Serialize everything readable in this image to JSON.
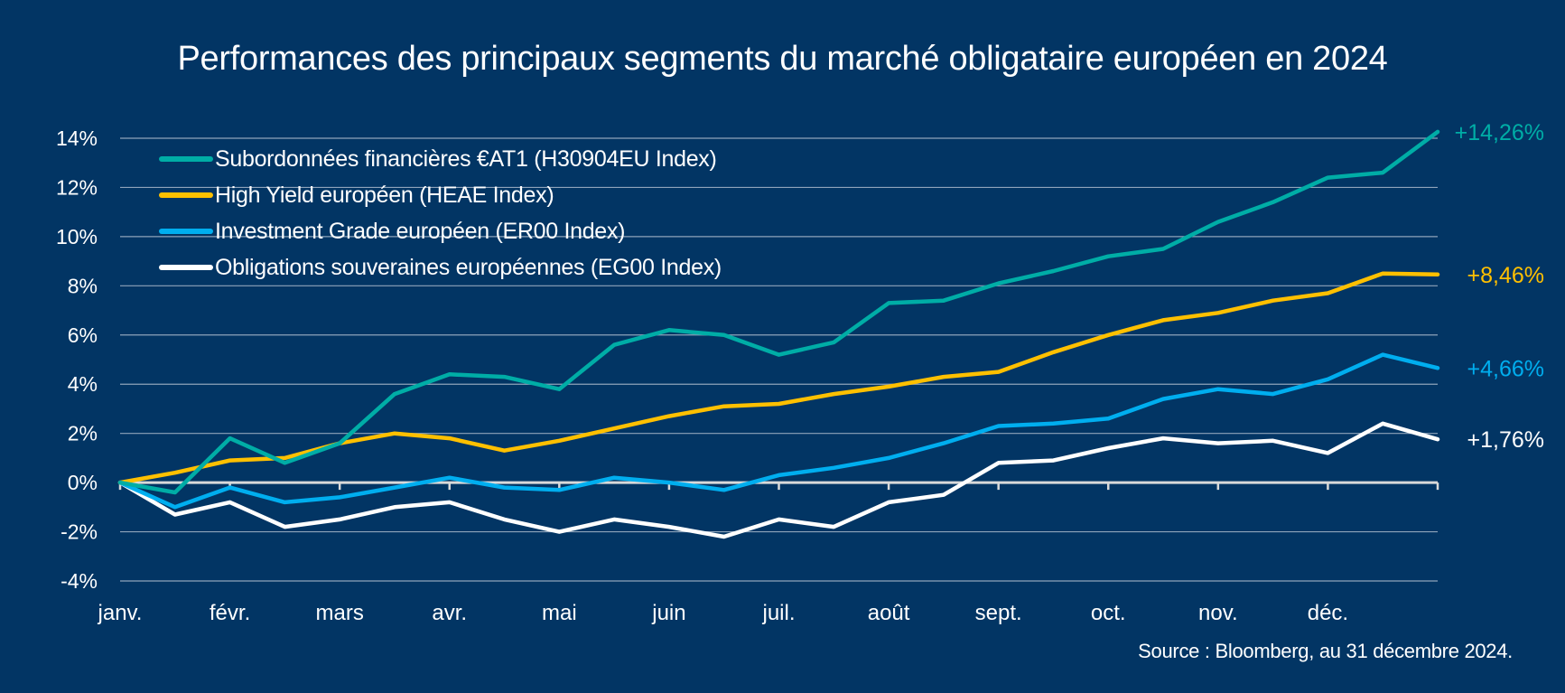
{
  "chart_data": {
    "type": "line",
    "title": "Performances des principaux segments du marché obligataire européen en 2024",
    "xlabel": "",
    "ylabel": "",
    "x_ticks": [
      "janv.",
      "févr.",
      "mars",
      "avr.",
      "mai",
      "juin",
      "juil.",
      "août",
      "sept.",
      "oct.",
      "nov.",
      "déc."
    ],
    "y_ticks": [
      "-4%",
      "-2%",
      "0%",
      "2%",
      "4%",
      "6%",
      "8%",
      "10%",
      "12%",
      "14%"
    ],
    "ylim": [
      -4,
      14
    ],
    "xlim_months": [
      0,
      12
    ],
    "grid": true,
    "legend_position": "top-left",
    "x": [
      0,
      0.5,
      1,
      1.5,
      2,
      2.5,
      3,
      3.5,
      4,
      4.5,
      5,
      5.5,
      6,
      6.5,
      7,
      7.5,
      8,
      8.5,
      9,
      9.5,
      10,
      10.5,
      11,
      11.5,
      12
    ],
    "series": [
      {
        "name": "Subordonnées financières €AT1 (H30904EU Index)",
        "color": "#00ADA6",
        "end_label": "+14,26%",
        "values": [
          0.0,
          -0.4,
          1.8,
          0.8,
          1.6,
          3.6,
          4.4,
          4.3,
          3.8,
          5.6,
          6.2,
          6.0,
          5.2,
          5.7,
          7.3,
          7.4,
          8.1,
          8.6,
          9.2,
          9.5,
          10.6,
          11.4,
          12.4,
          12.6,
          14.26
        ]
      },
      {
        "name": "High Yield européen (HEAE Index)",
        "color": "#FFC000",
        "end_label": "+8,46%",
        "values": [
          0.0,
          0.4,
          0.9,
          1.0,
          1.6,
          2.0,
          1.8,
          1.3,
          1.7,
          2.2,
          2.7,
          3.1,
          3.2,
          3.6,
          3.9,
          4.3,
          4.5,
          5.3,
          6.0,
          6.6,
          6.9,
          7.4,
          7.7,
          8.5,
          8.46
        ]
      },
      {
        "name": "Investment Grade européen (ER00 Index)",
        "color": "#00AEEF",
        "end_label": "+4,66%",
        "values": [
          0.0,
          -1.0,
          -0.2,
          -0.8,
          -0.6,
          -0.2,
          0.2,
          -0.2,
          -0.3,
          0.2,
          0.0,
          -0.3,
          0.3,
          0.6,
          1.0,
          1.6,
          2.3,
          2.4,
          2.6,
          3.4,
          3.8,
          3.6,
          4.2,
          5.2,
          4.66
        ]
      },
      {
        "name": "Obligations souveraines européennes (EG00 Index)",
        "color": "#FFFFFF",
        "end_label": "+1,76%",
        "values": [
          0.0,
          -1.3,
          -0.8,
          -1.8,
          -1.5,
          -1.0,
          -0.8,
          -1.5,
          -2.0,
          -1.5,
          -1.8,
          -2.2,
          -1.5,
          -1.8,
          -0.8,
          -0.5,
          0.8,
          0.9,
          1.4,
          1.8,
          1.6,
          1.7,
          1.2,
          2.4,
          1.76
        ]
      }
    ],
    "source": "Source : Bloomberg, au 31 décembre 2024."
  }
}
